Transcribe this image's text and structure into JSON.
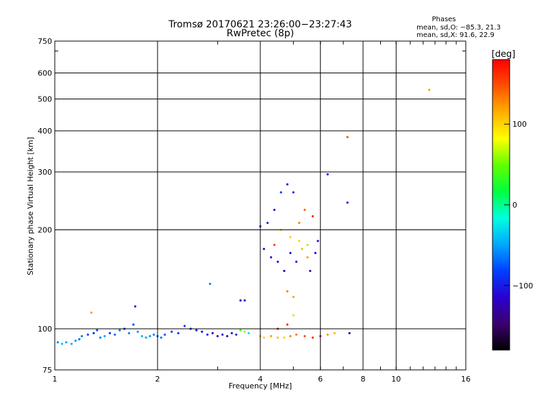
{
  "header": {
    "title_line1": "Tromsø 20170621 23:26:00−23:27:43",
    "title_line2": "RwPretec (8p)",
    "phases_title": "Phases",
    "phases_line_o": "mean, sd,O: −85.3, 21.3",
    "phases_line_x": "mean, sd,X:  91.6, 22.9"
  },
  "colorbar": {
    "unit_label": "[deg]",
    "ticks": [
      "100",
      "0",
      "−100"
    ],
    "tick_values": [
      100,
      0,
      -100
    ],
    "range": [
      -180,
      180
    ],
    "colors": [
      "#000000",
      "#3b0070",
      "#2a00d0",
      "#0040ff",
      "#00a8ff",
      "#00ffe0",
      "#00ff40",
      "#60ff00",
      "#ffff00",
      "#ffb000",
      "#ff5000",
      "#ff0000"
    ]
  },
  "chart_data": {
    "type": "scatter",
    "xlabel": "Frequency [MHz]",
    "ylabel": "Stationary phase Virtual Height [km]",
    "x_scale": "log",
    "y_scale": "log",
    "xlim": [
      1,
      16
    ],
    "ylim": [
      75,
      750
    ],
    "x_ticks": [
      1,
      2,
      4,
      6,
      8,
      10,
      16
    ],
    "x_tick_labels": [
      "1",
      "2",
      "4",
      "6",
      "8",
      "10",
      "16"
    ],
    "y_ticks": [
      75,
      100,
      200,
      300,
      400,
      500,
      600,
      750
    ],
    "y_tick_labels": [
      "75",
      "100",
      "200",
      "300",
      "400",
      "500",
      "600",
      "750"
    ],
    "grid_x": [
      2,
      4,
      6,
      8,
      10
    ],
    "grid_y": [
      100,
      200,
      300,
      400,
      500,
      600
    ],
    "points": [
      [
        1.02,
        91,
        -60
      ],
      [
        1.05,
        90,
        -40
      ],
      [
        1.08,
        91,
        -50
      ],
      [
        1.12,
        90,
        -45
      ],
      [
        1.15,
        92,
        -55
      ],
      [
        1.18,
        93,
        -70
      ],
      [
        1.2,
        95,
        -65
      ],
      [
        1.25,
        96,
        -80
      ],
      [
        1.3,
        97,
        -90
      ],
      [
        1.33,
        99,
        -75
      ],
      [
        1.36,
        94,
        -60
      ],
      [
        1.4,
        95,
        -50
      ],
      [
        1.45,
        97,
        -85
      ],
      [
        1.5,
        96,
        -70
      ],
      [
        1.55,
        99,
        -65
      ],
      [
        1.6,
        100,
        -95
      ],
      [
        1.65,
        97,
        -60
      ],
      [
        1.7,
        103,
        -80
      ],
      [
        1.75,
        98,
        -55
      ],
      [
        1.8,
        95,
        -45
      ],
      [
        1.85,
        94,
        -50
      ],
      [
        1.9,
        95,
        -55
      ],
      [
        1.95,
        96,
        -60
      ],
      [
        2.0,
        95,
        -70
      ],
      [
        2.05,
        94,
        -65
      ],
      [
        2.1,
        96,
        -75
      ],
      [
        2.2,
        98,
        -85
      ],
      [
        2.3,
        97,
        -90
      ],
      [
        2.4,
        102,
        -85
      ],
      [
        2.5,
        100,
        -95
      ],
      [
        2.6,
        99,
        -100
      ],
      [
        2.7,
        98,
        -110
      ],
      [
        2.8,
        96,
        -95
      ],
      [
        2.9,
        97,
        -120
      ],
      [
        3.0,
        95,
        -110
      ],
      [
        3.1,
        96,
        -100
      ],
      [
        3.2,
        95,
        -115
      ],
      [
        3.3,
        97,
        -105
      ],
      [
        3.4,
        96,
        -90
      ],
      [
        3.5,
        99,
        40
      ],
      [
        3.6,
        98,
        60
      ],
      [
        3.7,
        97,
        -30
      ],
      [
        1.28,
        112,
        120
      ],
      [
        1.72,
        117,
        -110
      ],
      [
        2.85,
        137,
        -60
      ],
      [
        3.5,
        122,
        -120
      ],
      [
        3.6,
        122,
        -110
      ],
      [
        4.0,
        95,
        110
      ],
      [
        4.1,
        94,
        100
      ],
      [
        4.3,
        95,
        120
      ],
      [
        4.5,
        94,
        110
      ],
      [
        4.7,
        94,
        100
      ],
      [
        4.9,
        95,
        130
      ],
      [
        5.1,
        96,
        130
      ],
      [
        5.4,
        95,
        150
      ],
      [
        5.7,
        94,
        160
      ],
      [
        6.0,
        95,
        170
      ],
      [
        6.3,
        96,
        120
      ],
      [
        6.6,
        97,
        110
      ],
      [
        7.3,
        97,
        -120
      ],
      [
        4.5,
        100,
        170
      ],
      [
        4.8,
        103,
        160
      ],
      [
        5.0,
        110,
        100
      ],
      [
        4.0,
        205,
        -90
      ],
      [
        4.2,
        210,
        -95
      ],
      [
        4.4,
        230,
        -100
      ],
      [
        4.6,
        260,
        -90
      ],
      [
        4.8,
        275,
        -95
      ],
      [
        5.0,
        260,
        -100
      ],
      [
        4.1,
        175,
        -110
      ],
      [
        4.3,
        165,
        -100
      ],
      [
        4.5,
        160,
        -105
      ],
      [
        4.7,
        150,
        -120
      ],
      [
        4.9,
        170,
        -110
      ],
      [
        5.1,
        160,
        -100
      ],
      [
        5.3,
        175,
        110
      ],
      [
        5.5,
        165,
        120
      ],
      [
        5.6,
        150,
        -120
      ],
      [
        5.8,
        170,
        -110
      ],
      [
        5.9,
        185,
        -120
      ],
      [
        4.8,
        130,
        130
      ],
      [
        5.0,
        125,
        120
      ],
      [
        5.2,
        210,
        130
      ],
      [
        5.4,
        230,
        140
      ],
      [
        4.9,
        190,
        100
      ],
      [
        5.2,
        185,
        100
      ],
      [
        5.5,
        180,
        60
      ],
      [
        5.7,
        220,
        170
      ],
      [
        4.6,
        200,
        100
      ],
      [
        4.4,
        180,
        150
      ],
      [
        6.3,
        295,
        -100
      ],
      [
        7.2,
        383,
        150
      ],
      [
        7.2,
        242,
        -110
      ],
      [
        12.5,
        533,
        120
      ]
    ]
  }
}
